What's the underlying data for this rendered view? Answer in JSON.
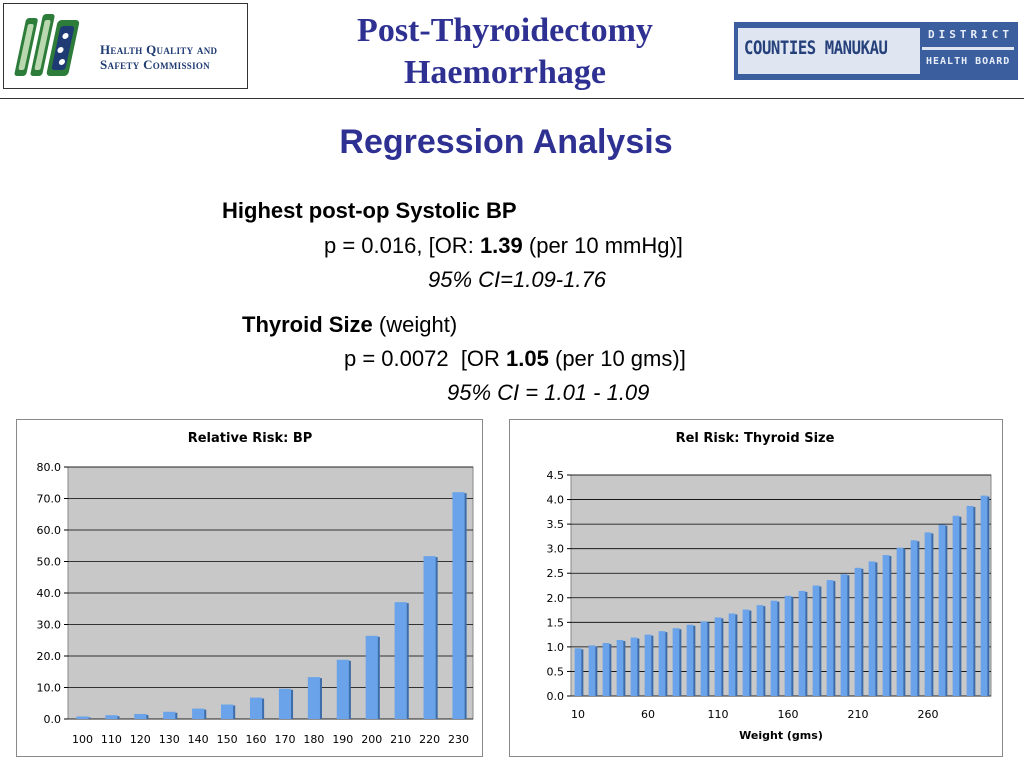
{
  "header": {
    "logo_left_line1": "Health Quality and",
    "logo_left_line2": "Safety Commission",
    "title_line1": "Post-Thyroidectomy",
    "title_line2": "Haemorrhage",
    "logo_right_main": "COUNTIES MANUKAU",
    "logo_right_top": "DISTRICT",
    "logo_right_bottom": "HEALTH BOARD"
  },
  "subtitle": "Regression Analysis",
  "results": {
    "bp_title": "Highest post-op Systolic BP",
    "bp_p_prefix": "p = 0.016, [OR: ",
    "bp_or": "1.39",
    "bp_suffix": " (per 10 mmHg)]",
    "bp_ci": "95% CI=1.09-1.76",
    "thyroid_title": "Thyroid Size",
    "thyroid_title_extra": " (weight)",
    "thyroid_p_prefix": "p = 0.0072  [OR ",
    "thyroid_or": "1.05",
    "thyroid_suffix": " (per 10 gms)]",
    "thyroid_ci": "95% CI = 1.01 - 1.09"
  },
  "colors": {
    "bar_fill": "#6aa3ea",
    "bar_shadow": "#3d6da8",
    "plot_bg": "#c8c8c8",
    "title_blue": "#2e3192"
  },
  "chart_data": [
    {
      "type": "bar",
      "title": "Relative Risk: BP",
      "xlabel": "",
      "ylabel": "",
      "categories": [
        "100",
        "110",
        "120",
        "130",
        "140",
        "150",
        "160",
        "170",
        "180",
        "190",
        "200",
        "210",
        "220",
        "230"
      ],
      "values": [
        0.8,
        1.2,
        1.6,
        2.3,
        3.3,
        4.6,
        6.8,
        9.6,
        13.3,
        18.8,
        26.4,
        37.1,
        51.7,
        72.0
      ],
      "ylim": [
        0,
        80
      ],
      "yticks": [
        0,
        10,
        20,
        30,
        40,
        50,
        60,
        70,
        80
      ],
      "ytick_labels": [
        "0.0",
        "10.0",
        "20.0",
        "30.0",
        "40.0",
        "50.0",
        "60.0",
        "70.0",
        "80.0"
      ],
      "grid": true,
      "legend": "none"
    },
    {
      "type": "bar",
      "title": "Rel Risk: Thyroid Size",
      "xlabel": "Weight (gms)",
      "ylabel": "",
      "x": [
        10,
        20,
        30,
        40,
        50,
        60,
        70,
        80,
        90,
        100,
        110,
        120,
        130,
        140,
        150,
        160,
        170,
        180,
        190,
        200,
        210,
        220,
        230,
        240,
        250,
        260,
        270,
        280,
        290,
        300
      ],
      "values": [
        0.97,
        1.03,
        1.08,
        1.14,
        1.19,
        1.25,
        1.32,
        1.38,
        1.45,
        1.52,
        1.6,
        1.68,
        1.76,
        1.85,
        1.94,
        2.04,
        2.14,
        2.25,
        2.36,
        2.48,
        2.61,
        2.74,
        2.87,
        3.02,
        3.17,
        3.33,
        3.49,
        3.67,
        3.87,
        4.08
      ],
      "xtick_labels": [
        "10",
        "60",
        "110",
        "160",
        "210",
        "260"
      ],
      "ylim": [
        0,
        4.5
      ],
      "yticks": [
        0,
        0.5,
        1.0,
        1.5,
        2.0,
        2.5,
        3.0,
        3.5,
        4.0,
        4.5
      ],
      "ytick_labels": [
        "0.0",
        "0.5",
        "1.0",
        "1.5",
        "2.0",
        "2.5",
        "3.0",
        "3.5",
        "4.0",
        "4.5"
      ],
      "grid": true,
      "legend": "none"
    }
  ]
}
